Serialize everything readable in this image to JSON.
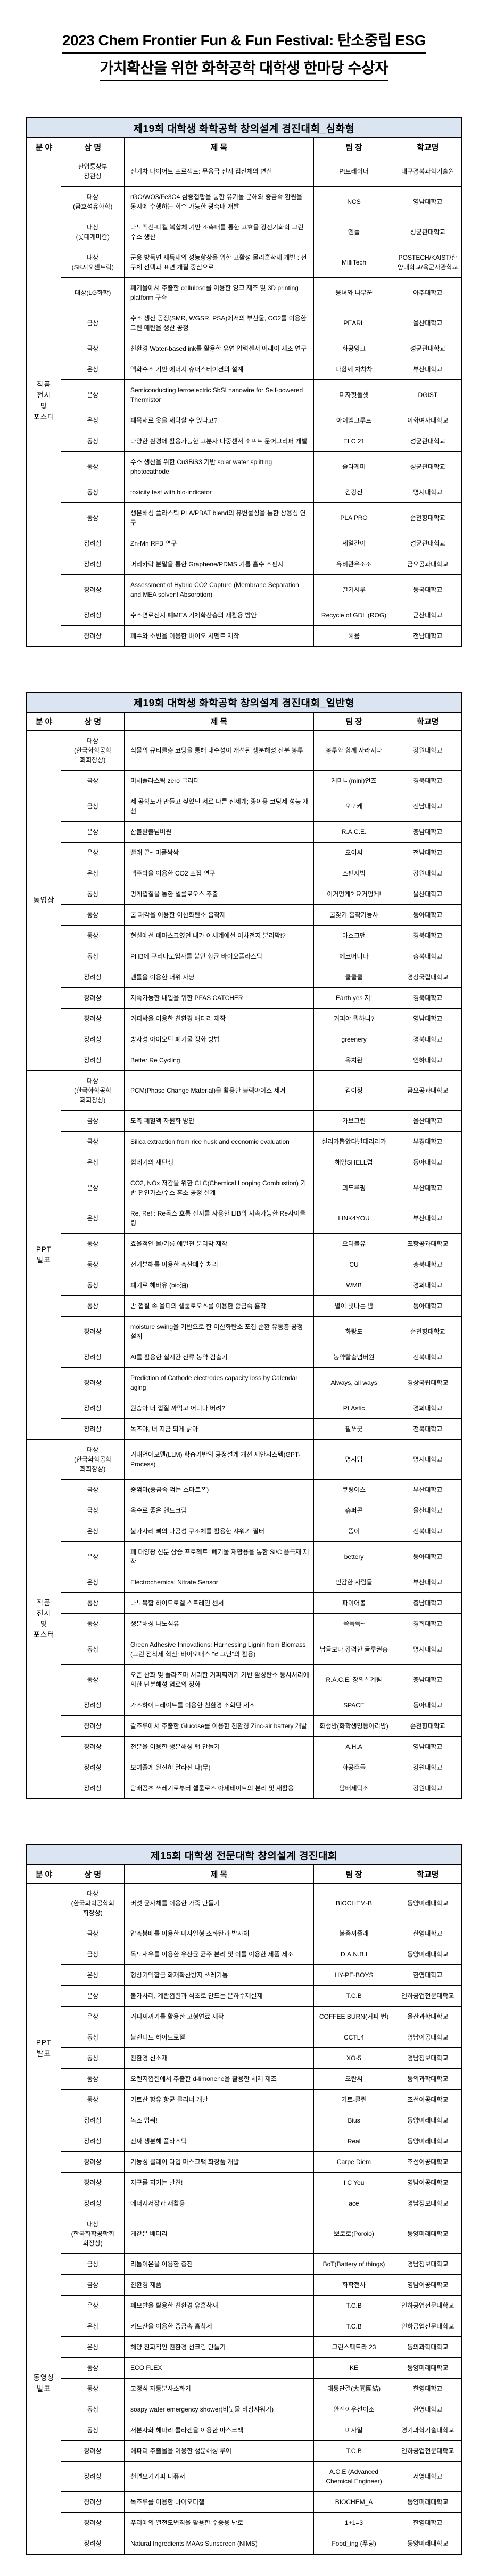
{
  "page": {
    "title_line1": "2023 Chem Frontier Fun & Fun Festival: 탄소중립 ESG",
    "title_line2": "가치확산을 위한 화학공학 대학생 한마당 수상자"
  },
  "colors": {
    "header_bg": "#dbe5f1",
    "border": "#000000"
  },
  "tables": [
    {
      "title": "제19회 대학생 화학공학 창의설계 경진대회_심화형",
      "columns": [
        "분 야",
        "상 명",
        "제  목",
        "팀 장",
        "학교명"
      ],
      "sections": [
        {
          "category": "작품\n전시\n및\n포스터",
          "rows": [
            {
              "award": "산업통상부\n장관상",
              "title": "전기차 다이어트 프로젝트: 무음극 전지 집전체의 변신",
              "team": "Pt트레이너",
              "school": "대구경북과학기술원"
            },
            {
              "award": "대상\n(금호석유화학)",
              "title": "rGO/WO3/Fe3O4 삼중접합을 통한 유기물 분해와 중금속 환원을 동시에 수행하는 회수 가능한 광촉매 개발",
              "team": "NCS",
              "school": "영남대학교"
            },
            {
              "award": "대상\n(롯데케미칼)",
              "title": "나노멕신-니켈 복합체 기반 조촉매를 통한 고효율 광전기화학 그린 수소 생산",
              "team": "엔들",
              "school": "성균관대학교"
            },
            {
              "award": "대상\n(SK지오센트릭)",
              "title": "군용 방독면 제독제의 성능향상을 위한 고활성 물리흡착제 개발 : 전구체 선택과 표면 개질 중심으로",
              "team": "MilliTech",
              "school": "POSTECH/KAIST/한양대학교/육군사관학교"
            },
            {
              "award": "대상(LG화학)",
              "title": "폐기물에서 추출한 cellulose를 이용한 잉크 제조 및 3D printing platform 구축",
              "team": "웅녀와 나무꾼",
              "school": "아주대학교"
            },
            {
              "award": "금상",
              "title": "수소 생산 공정(SMR, WGSR, PSA)에서의 부산물, CO2를 이용한 그린 메탄올 생산 공정",
              "team": "PEARL",
              "school": "울산대학교"
            },
            {
              "award": "금상",
              "title": "친환경 Water-based ink를 활용한 유연 압력센서 어레이 제조 연구",
              "team": "화공잉크",
              "school": "성균관대학교"
            },
            {
              "award": "은상",
              "title": "액화수소 기반 에너지 슈퍼스테이션의 설계",
              "team": "다함께 차차차",
              "school": "부산대학교"
            },
            {
              "award": "은상",
              "title": "Semiconducting ferroelectric SbSI nanowire for Self-powered Thermistor",
              "team": "피자헛둘셋",
              "school": "DGIST"
            },
            {
              "award": "은상",
              "title": "폐목재로 옷을 세탁할 수 있다고?",
              "team": "아이엠그루트",
              "school": "이화여자대학교"
            },
            {
              "award": "동상",
              "title": "다양한 환경에 활용가능한 고분자 다중센서 소프트 문어그리퍼 개발",
              "team": "ELC 21",
              "school": "성균관대학교"
            },
            {
              "award": "동상",
              "title": "수소 생산을 위한 Cu3BiS3 기반 solar water splitting photocathode",
              "team": "솔라케미",
              "school": "성균관대학교"
            },
            {
              "award": "동상",
              "title": "toxicity test with bio-indicator",
              "team": "김강전",
              "school": "명지대학교"
            },
            {
              "award": "동상",
              "title": "생분해성 플라스틱 PLA/PBAT blend의 유변물성을 통한 상용성 연구",
              "team": "PLA PRO",
              "school": "순천향대학교"
            },
            {
              "award": "장려상",
              "title": "Zn-Mn RFB 연구",
              "team": "세얼간이",
              "school": "성균관대학교"
            },
            {
              "award": "장려상",
              "title": "머리카락 분말을 통한 Graphene/PDMS 기름 흡수 스펀지",
              "team": "유비관우조조",
              "school": "금오공과대학교"
            },
            {
              "award": "장려상",
              "title": "Assessment of Hybrid CO2 Capture (Membrane Separation and MEA solvent Absorption)",
              "team": "딸기시루",
              "school": "동국대학교"
            },
            {
              "award": "장려상",
              "title": "수소연료전지 폐MEA 기체확산층의 재활용 방안",
              "team": "Recycle of GDL (ROG)",
              "school": "군산대학교"
            },
            {
              "award": "장려상",
              "title": "폐수와 소변을 이용한 바이오 시멘트 제작",
              "team": "혜윰",
              "school": "전남대학교"
            }
          ]
        }
      ]
    },
    {
      "title": "제19회 대학생 화학공학 창의설계 경진대회_일반형",
      "columns": [
        "분 야",
        "상 명",
        "제  목",
        "팀 장",
        "학교명"
      ],
      "sections": [
        {
          "category": "동영상",
          "rows": [
            {
              "award": "대상\n(한국화학공학\n회회장상)",
              "title": "식물의 큐티클층 코팅을 통해 내수성이 개선된 생분해성 전분 봉투",
              "team": "봉투와 함께 사라지다",
              "school": "강원대학교"
            },
            {
              "award": "금상",
              "title": "미세플라스틱 zero 글리터",
              "team": "케미니(mini)언즈",
              "school": "경북대학교"
            },
            {
              "award": "금상",
              "title": "세 공학도가 만들고 싶었던 서로 다른 신세계; 종이용 코팅제 성능 개선",
              "team": "오또케",
              "school": "전남대학교"
            },
            {
              "award": "은상",
              "title": "산불탈출넘버원",
              "team": "R.A.C.E.",
              "school": "충남대학교"
            },
            {
              "award": "은상",
              "title": "빨래 끝~ 미플싹싹",
              "team": "오이씨",
              "school": "전남대학교"
            },
            {
              "award": "은상",
              "title": "맥주박을 이용한 CO2 포집 연구",
              "team": "스펀지박",
              "school": "강원대학교"
            },
            {
              "award": "동상",
              "title": "멍게껍질을 통한 셀룰로오스 추출",
              "team": "이거멍게? 요거멍게!",
              "school": "울산대학교"
            },
            {
              "award": "동상",
              "title": "굴 패각을 이용한 이산화탄소 흡착제",
              "team": "굴찾기 흡착기능사",
              "school": "동아대학교"
            },
            {
              "award": "동상",
              "title": "현실에선 폐마스크였던 내가 이세계에선 이차전지 분리막!?",
              "team": "마스크맨",
              "school": "경북대학교"
            },
            {
              "award": "동상",
              "title": "PHB에 구리나노입자를 붙인 항균 바이오플라스틱",
              "team": "에코머니나",
              "school": "충북대학교"
            },
            {
              "award": "장려상",
              "title": "멘톨을 이용한 더위 사냥",
              "team": "쿨쿨쿨",
              "school": "경상국립대학교"
            },
            {
              "award": "장려상",
              "title": "지속가능한 내일을 위한 PFAS CATCHER",
              "team": "Earth yes 지!",
              "school": "경북대학교"
            },
            {
              "award": "장려상",
              "title": "커피박을 이용한 친환경 배터리 제작",
              "team": "커피야 뭐하니?",
              "school": "영남대학교"
            },
            {
              "award": "장려상",
              "title": "방사성 아이오딘 폐기물 정화 방법",
              "team": "greenery",
              "school": "경북대학교"
            },
            {
              "award": "장려상",
              "title": "Better Re Cycling",
              "team": "옥치완",
              "school": "인하대학교"
            }
          ]
        },
        {
          "category": "PPT\n발표",
          "rows": [
            {
              "award": "대상\n(한국화학공학\n회회장상)",
              "title": "PCM(Phase Change Material)을 활용한 블랙아이스 제거",
              "team": "김이정",
              "school": "금오공과대학교"
            },
            {
              "award": "금상",
              "title": "도축 폐혈액 자원화 방안",
              "team": "카보그린",
              "school": "울산대학교"
            },
            {
              "award": "금상",
              "title": "Silica extraction from rice husk and economic evaluation",
              "team": "실리카뽑았다널데리러가",
              "school": "부경대학교"
            },
            {
              "award": "은상",
              "title": "껍데기의 재탄생",
              "team": "해양SHELL럽",
              "school": "동아대학교"
            },
            {
              "award": "은상",
              "title": "CO2, NOx 저감을 위한 CLC(Chemical Looping Combustion) 기반 천연가스/수소 혼소 공정 설계",
              "team": "괴도루핑",
              "school": "부산대학교"
            },
            {
              "award": "은상",
              "title": "Re, Re! : Re독스 흐름 전지를 사용한 LIB의 지속가능한 Re사이클링",
              "team": "LINK4YOU",
              "school": "부산대학교"
            },
            {
              "award": "동상",
              "title": "효율적인 물/기름 에멀젼 분리막 제작",
              "team": "오더블유",
              "school": "포항공과대학교"
            },
            {
              "award": "동상",
              "title": "전기분해를 이용한 축산폐수 처리",
              "team": "CU",
              "school": "충북대학교"
            },
            {
              "award": "동상",
              "title": "폐기로 해바유 (bio油)",
              "team": "WMB",
              "school": "경희대학교"
            },
            {
              "award": "동상",
              "title": "밤 껍질 속 율피의 셀룰로오스를 이용한 중금속 흡착",
              "team": "별이 빛나는 밤",
              "school": "동아대학교"
            },
            {
              "award": "장려상",
              "title": "moisture swing을 기반으로 한 이산화탄소 포집 순환 유동층 공정 설계",
              "team": "화랑도",
              "school": "순천향대학교"
            },
            {
              "award": "장려상",
              "title": "AI를 활용한 실시간 잔류 농약 검출기",
              "team": "농약탈출넘버원",
              "school": "전북대학교"
            },
            {
              "award": "장려상",
              "title": "Prediction of Cathode electrodes capacity loss by Calendar aging",
              "team": "Always, all ways",
              "school": "경상국립대학교"
            },
            {
              "award": "장려상",
              "title": "원숭아 너 껍질 까먹고 어디다 버려?",
              "team": "PLAstic",
              "school": "경희대학교"
            },
            {
              "award": "장려상",
              "title": "녹조야, 너 지금 되게 밝아",
              "team": "필쏘굿",
              "school": "전북대학교"
            }
          ]
        },
        {
          "category": "작품\n전시\n및\n포스터",
          "rows": [
            {
              "award": "대상\n(한국화학공학\n회회장상)",
              "title": "거대언어모델(LLM) 학습기반의 공정설계 개선 제안시스템(GPT-Process)",
              "team": "명지팀",
              "school": "명지대학교"
            },
            {
              "award": "금상",
              "title": "중꺾마(중금속 꺾는 스마트폰)",
              "team": "큐링어스",
              "school": "부산대학교"
            },
            {
              "award": "금상",
              "title": "옥수로 좋은 핸드크림",
              "team": "슈퍼콘",
              "school": "울산대학교"
            },
            {
              "award": "은상",
              "title": "불가사리 뼈의 다공성 구조체를 활용한 샤워기 필터",
              "team": "뚱이",
              "school": "전북대학교"
            },
            {
              "award": "은상",
              "title": "폐 태양광 신분 상승 프로젝트: 폐기물 재활용을 통한 Si/C 음극재 제작",
              "team": "bettery",
              "school": "동아대학교"
            },
            {
              "award": "은상",
              "title": "Electrochemical Nitrate Sensor",
              "team": "민감한 사람들",
              "school": "부산대학교"
            },
            {
              "award": "동상",
              "title": "나노복합 하이드로겔 스트레인 센서",
              "team": "파이어볼",
              "school": "충남대학교"
            },
            {
              "award": "동상",
              "title": "생분해성 나노섬유",
              "team": "쏙쏙쏙~",
              "school": "경희대학교"
            },
            {
              "award": "동상",
              "title": "Green Adhesive Innovations: Harnessing Lignin from Biomass (그린 점착제 혁신: 바이오매스 \"리그닌\"의 활용)",
              "team": "남들보다 강력한 글루권총",
              "school": "명지대학교"
            },
            {
              "award": "동상",
              "title": "오존 산화 및 플라즈마 처리한 커피찌꺼기 기반 활성탄소 동시처리에 의한 난분해성 염료의 정화",
              "team": "R.A.C.E. 창의설계팀",
              "school": "충남대학교"
            },
            {
              "award": "장려상",
              "title": "가스하이드레이트를 이용한 친환경 소화탄 제조",
              "team": "SPACE",
              "school": "동아대학교"
            },
            {
              "award": "장려상",
              "title": "갈조류에서 추출한 Glucose를 이용한 친환경 Zinc-air battery 개발",
              "team": "화생방(화학생명동아리방)",
              "school": "순천향대학교"
            },
            {
              "award": "장려상",
              "title": "전분을 이용한 생분해성 랩 만들기",
              "team": "A.H.A",
              "school": "영남대학교"
            },
            {
              "award": "장려상",
              "title": "보여줄게 완전히 달라진 나(무)",
              "team": "화공주들",
              "school": "강원대학교"
            },
            {
              "award": "장려상",
              "title": "담배꽁초 쓰레기로부터 셀룰로스 아세테이트의 분리 및 재활용",
              "team": "담배세탁소",
              "school": "강원대학교"
            }
          ]
        }
      ]
    },
    {
      "title": "제15회 대학생 전문대학 창의설계 경진대회",
      "columns": [
        "분 야",
        "상 명",
        "제  목",
        "팀 장",
        "학교명"
      ],
      "sections": [
        {
          "category": "PPT\n발표",
          "rows": [
            {
              "award": "대상\n(한국화학공학회\n회장상)",
              "title": "버섯 균사체를 이용한 가죽 만들기",
              "team": "BIOCHEM-B",
              "school": "동양미래대학교"
            },
            {
              "award": "금상",
              "title": "압축봄베를 이용한 미사일형 소화탄과 발사체",
              "team": "불좀꺼줄래",
              "school": "한영대학교"
            },
            {
              "award": "금상",
              "title": "독도새우를 이용한 유산균 균주 분리 및 이를 이용한 제품 제조",
              "team": "D.A.N.B.I",
              "school": "동양미래대학교"
            },
            {
              "award": "은상",
              "title": "형상기억합금 화재확산방지 쓰레기통",
              "team": "HY-PE-BOYS",
              "school": "한영대학교"
            },
            {
              "award": "은상",
              "title": "불가사리, 계란껍질과 식초로 만드는 은하수제설제",
              "team": "T.C.B",
              "school": "인하공업전문대학교"
            },
            {
              "award": "은상",
              "title": "커피찌꺼기를 활용한 고형연료 제작",
              "team": "COFFEE BURN(커피 번)",
              "school": "울산과학대학교"
            },
            {
              "award": "동상",
              "title": "블렌디드 하이드로젤",
              "team": "CCTL4",
              "school": "영남이공대학교"
            },
            {
              "award": "동상",
              "title": "친환경 신소재",
              "team": "XO-5",
              "school": "경남정보대학교"
            },
            {
              "award": "동상",
              "title": "오렌지껍질에서 추출한 d-limonene을 활용한 세제 제조",
              "team": "오란씨",
              "school": "동의과학대학교"
            },
            {
              "award": "동상",
              "title": "키토산 함유 항균 클리너 개발",
              "team": "키토-클린",
              "school": "조선이공대학교"
            },
            {
              "award": "장려상",
              "title": "녹조 멈춰!",
              "team": "Bius",
              "school": "동양미래대학교"
            },
            {
              "award": "장려상",
              "title": "진짜 생분해 플라스틱",
              "team": "Real",
              "school": "동양미래대학교"
            },
            {
              "award": "장려상",
              "title": "기능성 클레이 타입 마스크팩 화장품 개발",
              "team": "Carpe Diem",
              "school": "조선이공대학교"
            },
            {
              "award": "장려상",
              "title": "지구를 지키는 발견!",
              "team": "I C You",
              "school": "영남이공대학교"
            },
            {
              "award": "장려상",
              "title": "에너지저장과 재활용",
              "team": "ace",
              "school": "경남정보대학교"
            }
          ]
        },
        {
          "category": "동영상\n발표",
          "rows": [
            {
              "award": "대상\n(한국화학공학회\n회장상)",
              "title": "게같은 배터리",
              "team": "뽀로로(Porolo)",
              "school": "동양미래대학교"
            },
            {
              "award": "금상",
              "title": "리튬이온을 이용한 충전",
              "team": "BoT(Battery of things)",
              "school": "경남정보대학교"
            },
            {
              "award": "금상",
              "title": "친환경 제품",
              "team": "화학전사",
              "school": "영남이공대학교"
            },
            {
              "award": "은상",
              "title": "폐모발을 활용한 친환경 유흡착재",
              "team": "T.C.B",
              "school": "인하공업전문대학교"
            },
            {
              "award": "은상",
              "title": "키토산을 이용한 중금속 흡착제",
              "team": "T.C.B",
              "school": "인하공업전문대학교"
            },
            {
              "award": "은상",
              "title": "해양 친화적인 친환경 선크림 만들기",
              "team": "그린스펙트라 23",
              "school": "동의과학대학교"
            },
            {
              "award": "동상",
              "title": "ECO FLEX",
              "team": "KE",
              "school": "동양미래대학교"
            },
            {
              "award": "동상",
              "title": "고정식 자동분사소화기",
              "team": "대동단결(大同團結)",
              "school": "한영대학교"
            },
            {
              "award": "동상",
              "title": "soapy water emergency shower(비눗물 비상샤워기)",
              "team": "안전이우선이조",
              "school": "한영대학교"
            },
            {
              "award": "동상",
              "title": "저분자화 해파리 콜라겐을 이용한 마스크팩",
              "team": "미사일",
              "school": "경기과학기술대학교"
            },
            {
              "award": "장려상",
              "title": "해파리 추출물을 이용한 생분해성 루어",
              "team": "T.C.B",
              "school": "인하공업전문대학교"
            },
            {
              "award": "장려상",
              "title": "천연모기기피 디퓨저",
              "team": "A.C.E (Advanced Chemical Engineer)",
              "school": "서영대학교"
            },
            {
              "award": "장려상",
              "title": "녹조류를 이용한 바이오디젤",
              "team": "BIOCHEM_A",
              "school": "동양미래대학교"
            },
            {
              "award": "장려상",
              "title": "푸리에의 열전도법칙을 활용한 수중용 난로",
              "team": "1+1=3",
              "school": "한영대학교"
            },
            {
              "award": "장려상",
              "title": "Natural Ingredients MAAs Sunscreen (NIMS)",
              "team": "Food_ing (푸딩)",
              "school": "동양미래대학교"
            }
          ]
        }
      ]
    }
  ]
}
